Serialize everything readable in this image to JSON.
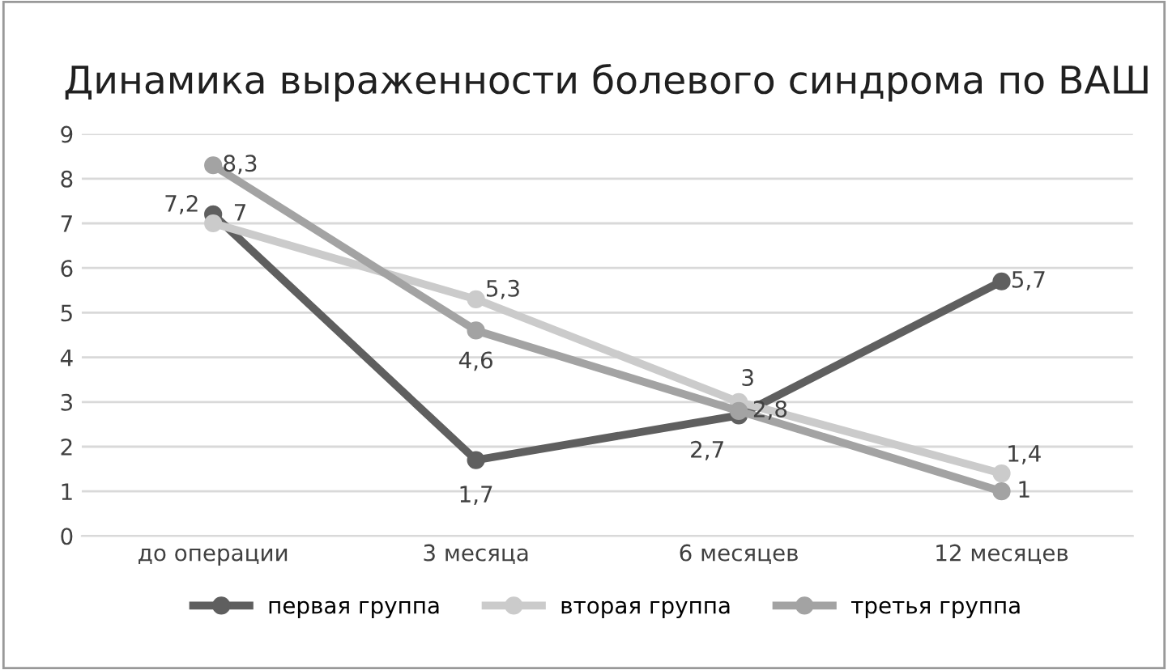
{
  "chart_data": {
    "type": "line",
    "title": "Динамика выраженности болевого синдрома по ВАШ",
    "categories": [
      "до операции",
      "3 месяца",
      "6 месяцев",
      "12 месяцев"
    ],
    "series": [
      {
        "name": "первая группа",
        "color": "#5f5f5f",
        "values": [
          7.2,
          1.7,
          2.7,
          5.7
        ],
        "value_labels": [
          "7,2",
          "1,7",
          "2,7",
          "5,7"
        ]
      },
      {
        "name": "вторая группа",
        "color": "#cbcbcb",
        "values": [
          7,
          5.3,
          3,
          1.4
        ],
        "value_labels": [
          "7",
          "5,3",
          "3",
          "1,4"
        ]
      },
      {
        "name": "третья группа",
        "color": "#a3a3a3",
        "values": [
          8.3,
          4.6,
          2.8,
          1
        ],
        "value_labels": [
          "8,3",
          "4,6",
          "2,8",
          "1"
        ]
      }
    ],
    "ylim": [
      0,
      9
    ],
    "yticks": [
      0,
      1,
      2,
      3,
      4,
      5,
      6,
      7,
      8,
      9
    ],
    "grid": "y",
    "legend": "bottom",
    "marker": "circle",
    "line_style": "solid"
  }
}
